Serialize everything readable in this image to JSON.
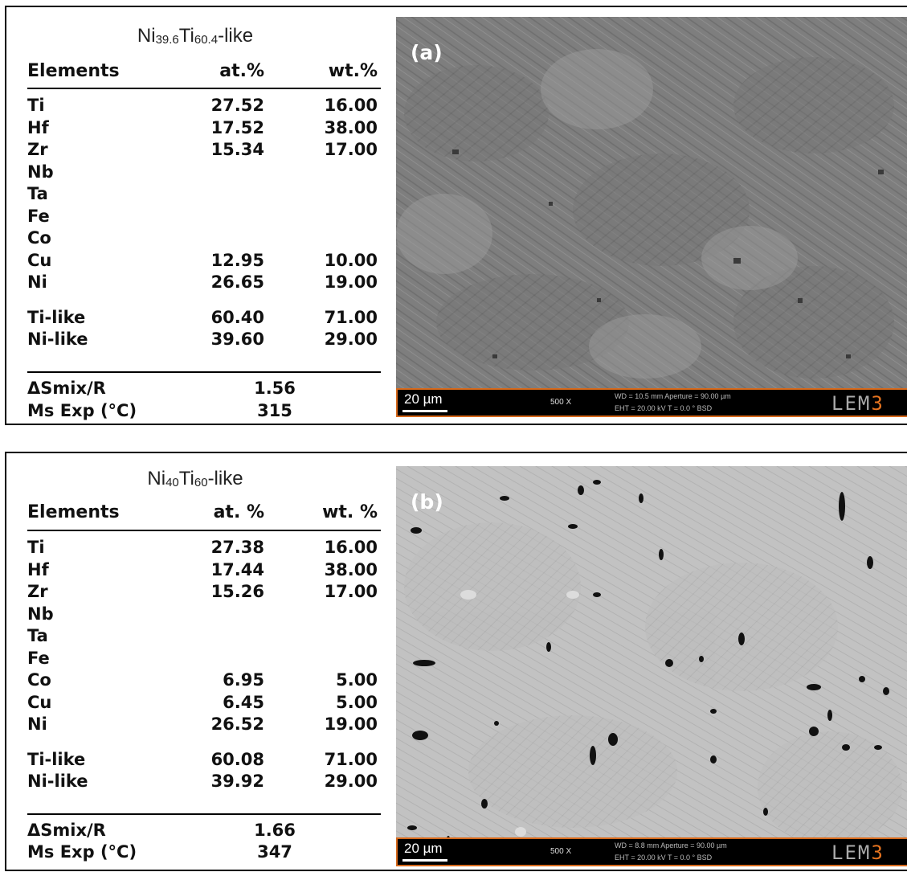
{
  "panel_a": {
    "title_main": "Ni",
    "title_sub1": "39.6",
    "title_mid": "Ti",
    "title_sub2": "60.4",
    "title_end": "-like",
    "headers": {
      "elements": "Elements",
      "at": "at.%",
      "wt": "wt.%"
    },
    "rows": [
      {
        "el": "Ti",
        "at": "27.52",
        "wt": "16.00"
      },
      {
        "el": "Hf",
        "at": "17.52",
        "wt": "38.00"
      },
      {
        "el": "Zr",
        "at": "15.34",
        "wt": "17.00"
      },
      {
        "el": "Nb",
        "at": "",
        "wt": ""
      },
      {
        "el": "Ta",
        "at": "",
        "wt": ""
      },
      {
        "el": "Fe",
        "at": "",
        "wt": ""
      },
      {
        "el": "Co",
        "at": "",
        "wt": ""
      },
      {
        "el": "Cu",
        "at": "12.95",
        "wt": "10.00"
      },
      {
        "el": "Ni",
        "at": "26.65",
        "wt": "19.00"
      }
    ],
    "like_rows": [
      {
        "el": "Ti-like",
        "at": "60.40",
        "wt": "71.00"
      },
      {
        "el": "Ni-like",
        "at": "39.60",
        "wt": "29.00"
      }
    ],
    "smix_label": "ΔSmix/R",
    "smix_value": "1.56",
    "ms_label": "Ms Exp (°C)",
    "ms_value": "315",
    "image_label": "(a)",
    "scale": "20 µm",
    "mag": "500 X",
    "meta1": "WD =  10.5 mm    Aperture =  90.00 µm",
    "meta2": "EHT =  20.00 kV   T = 0.0 °        BSD",
    "logo_a": "LEM",
    "logo_b": "3"
  },
  "panel_b": {
    "title_main": "Ni",
    "title_sub1": "40",
    "title_mid": "Ti",
    "title_sub2": "60",
    "title_end": "-like",
    "headers": {
      "elements": "Elements",
      "at": "at. %",
      "wt": "wt. %"
    },
    "rows": [
      {
        "el": "Ti",
        "at": "27.38",
        "wt": "16.00"
      },
      {
        "el": "Hf",
        "at": "17.44",
        "wt": "38.00"
      },
      {
        "el": "Zr",
        "at": "15.26",
        "wt": "17.00"
      },
      {
        "el": "Nb",
        "at": "",
        "wt": ""
      },
      {
        "el": "Ta",
        "at": "",
        "wt": ""
      },
      {
        "el": "Fe",
        "at": "",
        "wt": ""
      },
      {
        "el": "Co",
        "at": "6.95",
        "wt": "5.00"
      },
      {
        "el": "Cu",
        "at": "6.45",
        "wt": "5.00"
      },
      {
        "el": "Ni",
        "at": "26.52",
        "wt": "19.00"
      }
    ],
    "like_rows": [
      {
        "el": "Ti-like",
        "at": "60.08",
        "wt": "71.00"
      },
      {
        "el": "Ni-like",
        "at": "39.92",
        "wt": "29.00"
      }
    ],
    "smix_label": "ΔSmix/R",
    "smix_value": "1.66",
    "ms_label": "Ms Exp (°C)",
    "ms_value": "347",
    "image_label": "(b)",
    "scale": "20 µm",
    "mag": "500 X",
    "meta1": "WD =  8.8 mm      Aperture =  90.00 µm",
    "meta2": "EHT =  20.00 kV   T = 0.0 °        BSD",
    "logo_a": "LEM",
    "logo_b": "3"
  }
}
